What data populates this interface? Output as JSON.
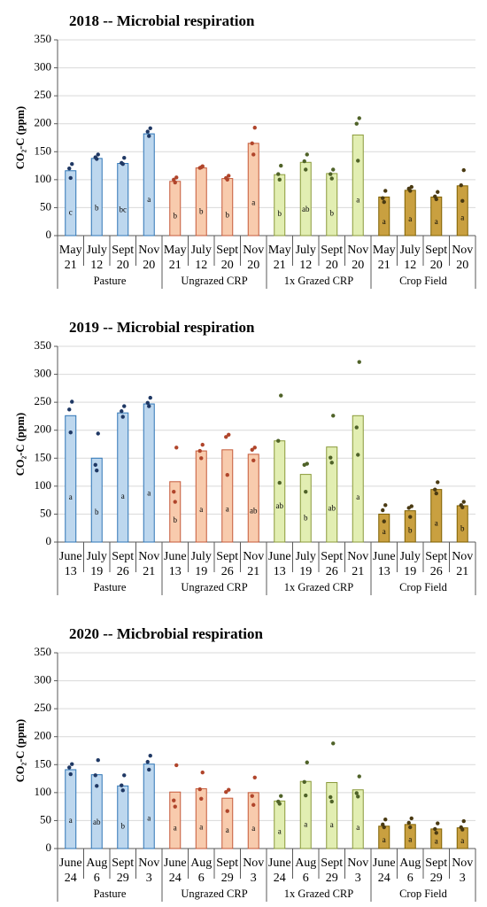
{
  "chart_data": [
    {
      "type": "bar",
      "title": "2018 -- Microbial respiration",
      "y_label": "CO₂-C (ppm)",
      "ylim": [
        0,
        350
      ],
      "yticks": [
        0,
        50,
        100,
        150,
        200,
        250,
        300,
        350
      ],
      "grid": true,
      "groups": [
        {
          "name": "Pasture",
          "color": "#bdd7ee",
          "edge_color": "#2e75b6",
          "point_color": "#1f3864"
        },
        {
          "name": "Ungrazed CRP",
          "color": "#f8cbad",
          "edge_color": "#c55a3a",
          "point_color": "#b0452b"
        },
        {
          "name": "1x Grazed CRP",
          "color": "#e2eeb2",
          "edge_color": "#8a9a3a",
          "point_color": "#4f6228"
        },
        {
          "name": "Crop Field",
          "color": "#c9a040",
          "edge_color": "#7f6000",
          "point_color": "#4a3a12"
        }
      ],
      "categories": [
        [
          "May",
          "21"
        ],
        [
          "July",
          "12"
        ],
        [
          "Sept",
          "20"
        ],
        [
          "Nov",
          "20"
        ],
        [
          "May",
          "21"
        ],
        [
          "July",
          "12"
        ],
        [
          "Sept",
          "20"
        ],
        [
          "Nov",
          "20"
        ],
        [
          "May",
          "21"
        ],
        [
          "July",
          "12"
        ],
        [
          "Sept",
          "20"
        ],
        [
          "Nov",
          "20"
        ],
        [
          "May",
          "21"
        ],
        [
          "July",
          "12"
        ],
        [
          "Sept",
          "20"
        ],
        [
          "Nov",
          "20"
        ]
      ],
      "values": [
        116,
        138,
        129,
        182,
        97,
        121,
        102,
        165,
        109,
        131,
        111,
        180,
        69,
        81,
        69,
        89
      ],
      "points": [
        [
          128,
          120,
          103
        ],
        [
          145,
          140,
          137
        ],
        [
          139,
          130,
          128
        ],
        [
          192,
          186,
          178
        ],
        [
          104,
          100,
          95
        ],
        [
          124,
          121,
          122
        ],
        [
          107,
          103,
          100
        ],
        [
          193,
          165,
          145
        ],
        [
          125,
          110,
          100
        ],
        [
          145,
          133,
          118
        ],
        [
          118,
          110,
          102
        ],
        [
          210,
          200,
          134
        ],
        [
          80,
          67,
          60
        ],
        [
          87,
          84,
          80
        ],
        [
          78,
          70,
          65
        ],
        [
          117,
          90,
          62
        ]
      ],
      "letters": [
        "c",
        "b",
        "bc",
        "a",
        "b",
        "b",
        "b",
        "a",
        "b",
        "ab",
        "b",
        "a",
        "a",
        "a",
        "a",
        "a"
      ]
    },
    {
      "type": "bar",
      "title": "2019 -- Microbial respiration",
      "y_label": "CO₂-C (ppm)",
      "ylim": [
        0,
        350
      ],
      "yticks": [
        0,
        50,
        100,
        150,
        200,
        250,
        300,
        350
      ],
      "grid": true,
      "groups": [
        {
          "name": "Pasture",
          "color": "#bdd7ee",
          "edge_color": "#2e75b6",
          "point_color": "#1f3864"
        },
        {
          "name": "Ungrazed CRP",
          "color": "#f8cbad",
          "edge_color": "#c55a3a",
          "point_color": "#b0452b"
        },
        {
          "name": "1x Grazed CRP",
          "color": "#e2eeb2",
          "edge_color": "#8a9a3a",
          "point_color": "#4f6228"
        },
        {
          "name": "Crop Field",
          "color": "#c9a040",
          "edge_color": "#7f6000",
          "point_color": "#4a3a12"
        }
      ],
      "categories": [
        [
          "June",
          "13"
        ],
        [
          "July",
          "19"
        ],
        [
          "Sept",
          "26"
        ],
        [
          "Nov",
          "21"
        ],
        [
          "June",
          "13"
        ],
        [
          "July",
          "19"
        ],
        [
          "Sept",
          "26"
        ],
        [
          "Nov",
          "21"
        ],
        [
          "June",
          "13"
        ],
        [
          "July",
          "19"
        ],
        [
          "Sept",
          "26"
        ],
        [
          "Nov",
          "21"
        ],
        [
          "June",
          "13"
        ],
        [
          "July",
          "19"
        ],
        [
          "Sept",
          "26"
        ],
        [
          "Nov",
          "21"
        ]
      ],
      "values": [
        226,
        150,
        231,
        247,
        108,
        163,
        165,
        157,
        181,
        121,
        170,
        226,
        50,
        56,
        94,
        65
      ],
      "points": [
        [
          251,
          237,
          196
        ],
        [
          194,
          138,
          128
        ],
        [
          243,
          234,
          224
        ],
        [
          258,
          249,
          243
        ],
        [
          169,
          90,
          72
        ],
        [
          174,
          163,
          150
        ],
        [
          192,
          188,
          120
        ],
        [
          169,
          165,
          146
        ],
        [
          262,
          181,
          106
        ],
        [
          140,
          138,
          90
        ],
        [
          226,
          151,
          142
        ],
        [
          322,
          205,
          156
        ],
        [
          66,
          57,
          37
        ],
        [
          64,
          61,
          45
        ],
        [
          107,
          94,
          87
        ],
        [
          72,
          66,
          62
        ]
      ],
      "letters": [
        "a",
        "b",
        "a",
        "a",
        "b",
        "a",
        "a",
        "ab",
        "ab",
        "b",
        "ab",
        "a",
        "a",
        "b",
        "a",
        "b"
      ]
    },
    {
      "type": "bar",
      "title": "2020 -- Micbrobial respiration",
      "y_label": "CO₂-C (ppm)",
      "ylim": [
        0,
        350
      ],
      "yticks": [
        0,
        50,
        100,
        150,
        200,
        250,
        300,
        350
      ],
      "grid": true,
      "groups": [
        {
          "name": "Pasture",
          "color": "#bdd7ee",
          "edge_color": "#2e75b6",
          "point_color": "#1f3864"
        },
        {
          "name": "Ungrazed CRP",
          "color": "#f8cbad",
          "edge_color": "#c55a3a",
          "point_color": "#b0452b"
        },
        {
          "name": "1x Grazed CRP",
          "color": "#e2eeb2",
          "edge_color": "#8a9a3a",
          "point_color": "#4f6228"
        },
        {
          "name": "Crop Field",
          "color": "#c9a040",
          "edge_color": "#7f6000",
          "point_color": "#4a3a12"
        }
      ],
      "categories": [
        [
          "June",
          "24"
        ],
        [
          "Aug",
          "6"
        ],
        [
          "Sept",
          "29"
        ],
        [
          "Nov",
          "3"
        ],
        [
          "June",
          "24"
        ],
        [
          "Aug",
          "6"
        ],
        [
          "Sept",
          "29"
        ],
        [
          "Nov",
          "3"
        ],
        [
          "June",
          "24"
        ],
        [
          "Aug",
          "6"
        ],
        [
          "Sept",
          "29"
        ],
        [
          "Nov",
          "3"
        ],
        [
          "June",
          "24"
        ],
        [
          "Aug",
          "6"
        ],
        [
          "Sept",
          "29"
        ],
        [
          "Nov",
          "3"
        ]
      ],
      "values": [
        141,
        132,
        112,
        151,
        101,
        107,
        90,
        100,
        85,
        120,
        118,
        105,
        40,
        43,
        35,
        37
      ],
      "points": [
        [
          151,
          145,
          133
        ],
        [
          158,
          131,
          112
        ],
        [
          131,
          113,
          104
        ],
        [
          166,
          155,
          141
        ],
        [
          149,
          86,
          75
        ],
        [
          136,
          106,
          89
        ],
        [
          105,
          101,
          67
        ],
        [
          127,
          94,
          78
        ],
        [
          94,
          84,
          80
        ],
        [
          154,
          119,
          95
        ],
        [
          188,
          92,
          84
        ],
        [
          129,
          99,
          93
        ],
        [
          52,
          43,
          38
        ],
        [
          54,
          46,
          38
        ],
        [
          45,
          35,
          28
        ],
        [
          49,
          38,
          34
        ]
      ],
      "letters": [
        "a",
        "ab",
        "b",
        "a",
        "a",
        "a",
        "a",
        "a",
        "a",
        "a",
        "a",
        "a",
        "a",
        "a",
        "a",
        "a"
      ]
    }
  ]
}
